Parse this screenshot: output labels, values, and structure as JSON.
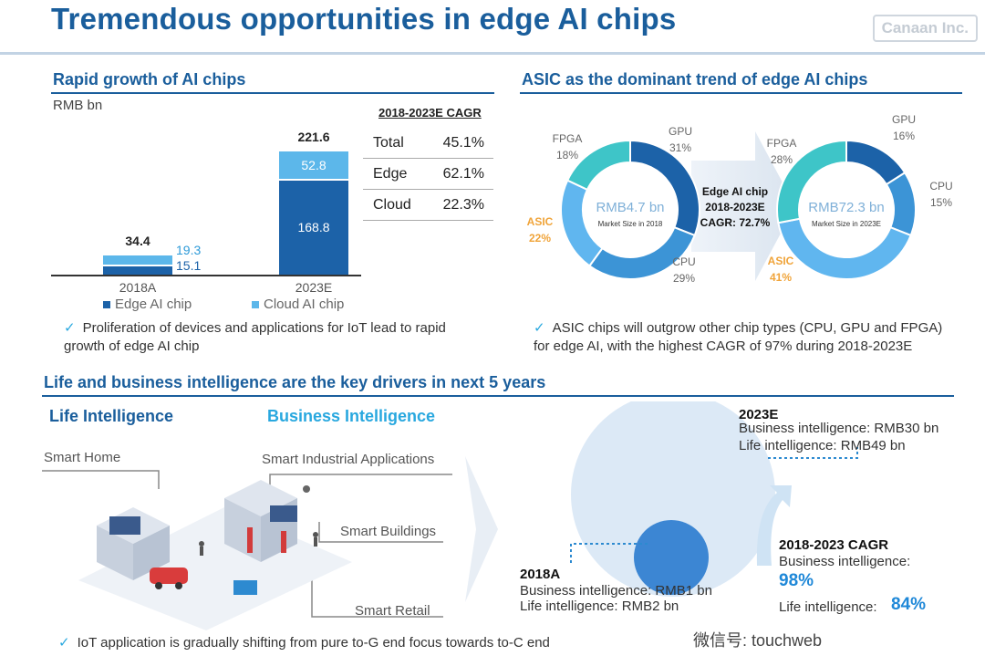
{
  "title": "Tremendous opportunities in edge AI chips",
  "brand": "Canaan Inc.",
  "left_section": {
    "heading": "Rapid growth of AI chips",
    "unit": "RMB bn",
    "cagr_table": {
      "header": "2018-2023E CAGR",
      "rows": [
        {
          "label": "Total",
          "value": "45.1%"
        },
        {
          "label": "Edge",
          "value": "62.1%"
        },
        {
          "label": "Cloud",
          "value": "22.3%"
        }
      ]
    },
    "legend": {
      "edge": "Edge AI chip",
      "cloud": "Cloud AI chip"
    },
    "note": "Proliferation of devices and applications for IoT lead to rapid growth of edge AI chip"
  },
  "right_section": {
    "heading": "ASIC as the dominant trend of edge AI chips",
    "arrow_text": [
      "Edge AI chip",
      "2018-2023E",
      "CAGR: 72.7%"
    ],
    "note": "ASIC chips will outgrow other chip types (CPU, GPU and FPGA) for edge AI, with the highest CAGR of 97% during 2018-2023E"
  },
  "bottom_section": {
    "heading": "Life and business intelligence are the key drivers in next 5 years",
    "life_heading": "Life Intelligence",
    "biz_heading": "Business Intelligence",
    "apps": [
      "Smart Home",
      "Smart Industrial Applications",
      "Smart Buildings",
      "Smart Retail"
    ],
    "note": "IoT application is gradually shifting from pure to-G end focus towards to-C end",
    "year_2023": {
      "label": "2023E",
      "biz": "Business intelligence: RMB30 bn",
      "life": "Life intelligence: RMB49 bn"
    },
    "year_2018": {
      "label": "2018A",
      "biz": "Business intelligence: RMB1 bn",
      "life": "Life intelligence: RMB2 bn"
    },
    "cagr": {
      "label": "2018-2023 CAGR",
      "biz_label": "Business intelligence:",
      "biz_value": "98%",
      "life_label": "Life intelligence:",
      "life_value": "84%"
    }
  },
  "watermark": "微信号: touchweb",
  "colors": {
    "dark_blue": "#1c62a8",
    "light_blue": "#5cb7ea",
    "teal": "#3ec5c8",
    "mid_blue": "#3c94d6",
    "pale_blue": "#60b6ef",
    "orange": "#f0a43a",
    "title_blue": "#1a5e9c"
  },
  "chart_data": [
    {
      "type": "bar",
      "stacked": true,
      "categories": [
        "2018A",
        "2023E"
      ],
      "totals": [
        "34.4",
        "221.6"
      ],
      "series": [
        {
          "name": "Edge AI chip",
          "values": [
            15.1,
            168.8
          ],
          "labels": [
            "15.1",
            "168.8"
          ]
        },
        {
          "name": "Cloud AI chip",
          "values": [
            19.3,
            52.8
          ],
          "labels": [
            "19.3",
            "52.8"
          ]
        }
      ]
    },
    {
      "type": "pie",
      "center_label": "RMB4.7 bn",
      "center_sub": "Market Size in 2018",
      "segments": [
        {
          "name": "GPU",
          "value": 31,
          "label": "31%"
        },
        {
          "name": "CPU",
          "value": 29,
          "label": "29%"
        },
        {
          "name": "ASIC",
          "value": 22,
          "label": "22%"
        },
        {
          "name": "FPGA",
          "value": 18,
          "label": "18%"
        }
      ]
    },
    {
      "type": "pie",
      "center_label": "RMB72.3 bn",
      "center_sub": "Market Size in 2023E",
      "segments": [
        {
          "name": "GPU",
          "value": 16,
          "label": "16%"
        },
        {
          "name": "CPU",
          "value": 15,
          "label": "15%"
        },
        {
          "name": "ASIC",
          "value": 41,
          "label": "41%"
        },
        {
          "name": "FPGA",
          "value": 28,
          "label": "28%"
        }
      ]
    }
  ]
}
